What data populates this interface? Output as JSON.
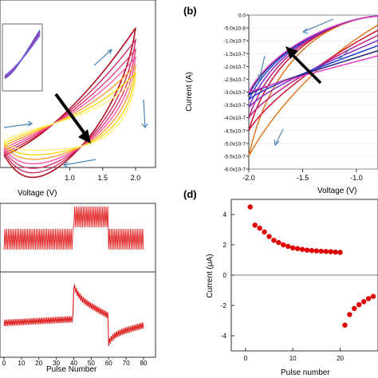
{
  "panels": {
    "b_label": "(b)",
    "d_label": "(d)"
  },
  "chart_data": [
    {
      "panel": "a",
      "type": "line",
      "xlabel": "Voltage (V)",
      "ylabel": "",
      "xlim": [
        0.0,
        2.0
      ],
      "xticks": [
        "1.0",
        "1.5",
        "2.0"
      ],
      "has_inset": true,
      "series_colors": [
        "#b01020",
        "#c8205a",
        "#e0306a",
        "#ff4fa0",
        "#ff9a30",
        "#ffd400",
        "#fff070"
      ],
      "annotation_arrow": "down-right (black)"
    },
    {
      "panel": "b",
      "type": "line",
      "xlabel": "Voltage (V)",
      "ylabel": "Current (A)",
      "xlim": [
        -2.0,
        -0.8
      ],
      "ylim": [
        -6e-07,
        0.0
      ],
      "xticks": [
        "-2.0",
        "-1.5",
        "-1.0"
      ],
      "yticks": [
        "0.0",
        "-5.0x10-8",
        "-1.0x10-7",
        "-1.5x10-7",
        "-2.0x10-7",
        "-2.5x10-7",
        "-3.0x10-7",
        "-3.5x10-7",
        "-4.0x10-7",
        "-4.5x10-7",
        "-5.0x10-7",
        "-5.5x10-7",
        "-6.0x10-7"
      ],
      "series": [
        {
          "color": "#e07820",
          "minimum_current": -5.5e-07
        },
        {
          "color": "#d01030",
          "minimum_current": -4.5e-07
        },
        {
          "color": "#c02080",
          "minimum_current": -4e-07
        },
        {
          "color": "#8030c0",
          "minimum_current": -3.6e-07
        },
        {
          "color": "#2040d0",
          "minimum_current": -3.3e-07
        },
        {
          "color": "#202080",
          "minimum_current": -3.1e-07
        },
        {
          "color": "#e040c0",
          "minimum_current": -3e-07
        }
      ],
      "annotation_arrow": "up-left (black)"
    },
    {
      "panel": "c",
      "type": "line",
      "xlabel": "Pulse Number",
      "xlim": [
        0,
        80
      ],
      "xticks": [
        "0",
        "10",
        "20",
        "30",
        "40",
        "50",
        "60",
        "70",
        "80"
      ],
      "segments": [
        [
          0,
          40,
          "low"
        ],
        [
          40,
          60,
          "high"
        ],
        [
          60,
          80,
          "low"
        ]
      ],
      "line_color": "#e02020"
    },
    {
      "panel": "d",
      "type": "scatter",
      "xlabel": "Pulse number",
      "ylabel": "Current (μA)",
      "xlim": [
        -3,
        28
      ],
      "ylim": [
        -5,
        5
      ],
      "xticks": [
        "0",
        "10",
        "20"
      ],
      "yticks": [
        "4",
        "2",
        "0",
        "-2",
        "-4"
      ],
      "point_color": "#e00000",
      "series": [
        {
          "x": [
            1,
            2,
            3,
            4,
            5,
            6,
            7,
            8,
            9,
            10,
            11,
            12,
            13,
            14,
            15,
            16,
            17,
            18,
            19,
            20
          ],
          "y": [
            4.5,
            3.3,
            3.1,
            2.85,
            2.55,
            2.3,
            2.15,
            2.0,
            1.9,
            1.8,
            1.75,
            1.7,
            1.65,
            1.62,
            1.6,
            1.58,
            1.56,
            1.55,
            1.52,
            1.5
          ]
        },
        {
          "x": [
            21,
            22,
            23,
            24,
            25,
            26,
            27
          ],
          "y": [
            -3.3,
            -2.6,
            -2.2,
            -1.95,
            -1.75,
            -1.55,
            -1.4
          ]
        }
      ]
    }
  ]
}
